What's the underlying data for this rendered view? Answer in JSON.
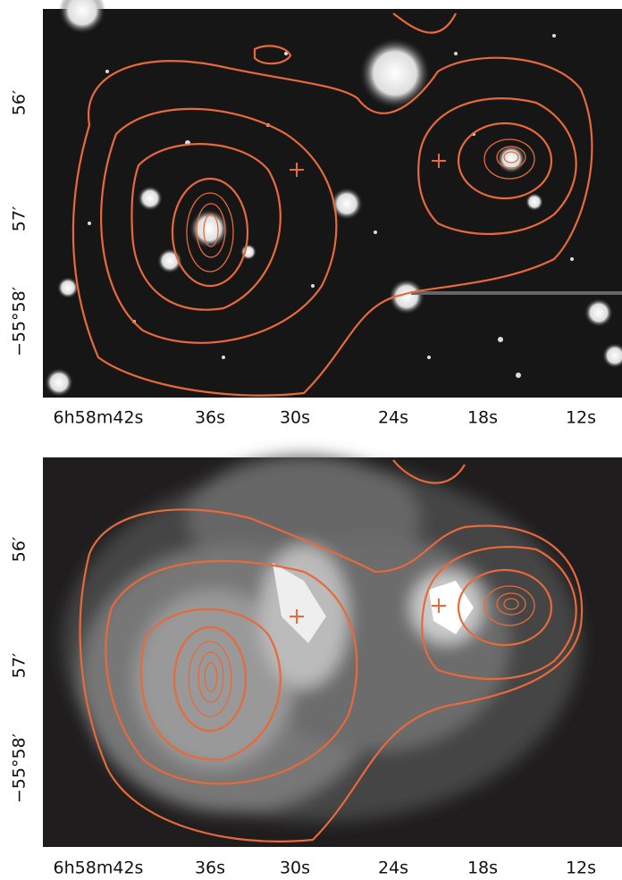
{
  "panels": [
    {
      "x_ticks": [
        "6h58m42s",
        "36s",
        "30s",
        "24s",
        "18s",
        "12s"
      ],
      "y_ticks": [
        "56′",
        "57′",
        "−55°58′"
      ]
    },
    {
      "x_ticks": [
        "6h58m42s",
        "36s",
        "30s",
        "24s",
        "18s",
        "12s"
      ],
      "y_ticks": [
        "56′",
        "57′",
        "−55°58′"
      ]
    }
  ]
}
